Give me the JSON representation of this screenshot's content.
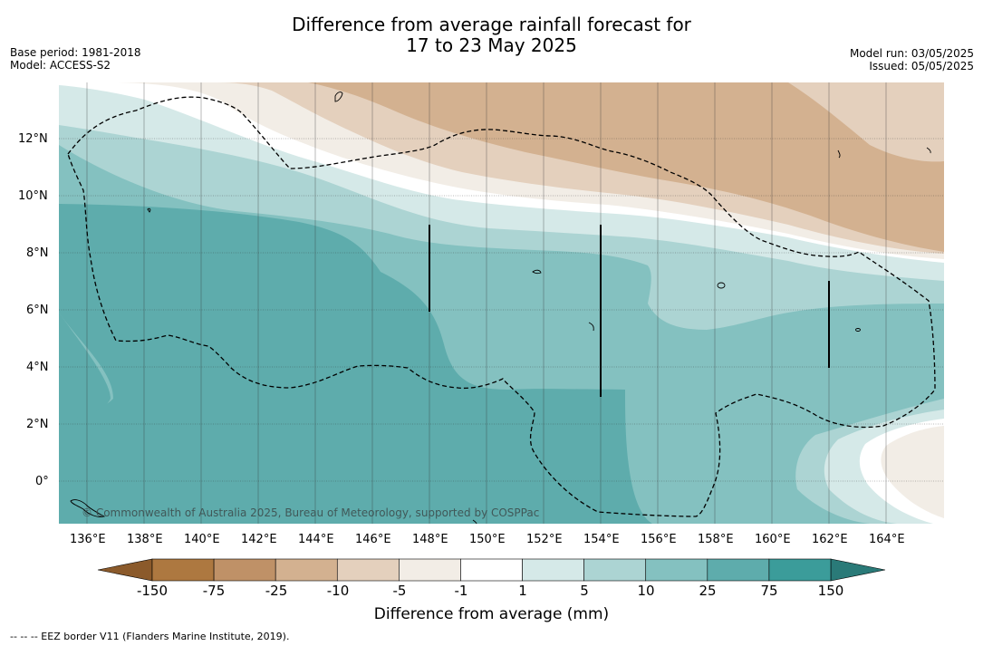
{
  "title_line1": "Difference from average rainfall forecast for",
  "title_line2": "17 to 23 May 2025",
  "meta_left": [
    "Base period: 1981-2018",
    "Model: ACCESS-S2"
  ],
  "meta_right": [
    "Model run: 03/05/2025",
    "Issued: 05/05/2025"
  ],
  "copyright": "© Commonwealth of Australia 2025, Bureau of Meteorology, supported by COSPPac",
  "lon_labels": [
    "136°E",
    "138°E",
    "140°E",
    "142°E",
    "144°E",
    "146°E",
    "148°E",
    "150°E",
    "152°E",
    "154°E",
    "156°E",
    "158°E",
    "160°E",
    "162°E",
    "164°E"
  ],
  "lat_labels": [
    "12°N",
    "10°N",
    "8°N",
    "6°N",
    "4°N",
    "2°N",
    "0°"
  ],
  "colorbar": {
    "title": "Difference from average (mm)",
    "tick_labels": [
      "-150",
      "-75",
      "-25",
      "-10",
      "-5",
      "-1",
      "1",
      "5",
      "10",
      "25",
      "75",
      "150"
    ],
    "colors": [
      "#8b5a2b",
      "#ad7840",
      "#bf9167",
      "#d3b190",
      "#e4d0bd",
      "#f2ede6",
      "#ffffff",
      "#d5e9e8",
      "#acd4d3",
      "#84c1c0",
      "#5eacac",
      "#3b9c9a",
      "#2a7a78"
    ]
  },
  "footnote": "--  --  -- EEZ border V11 (Flanders Marine Institute, 2019)."
}
